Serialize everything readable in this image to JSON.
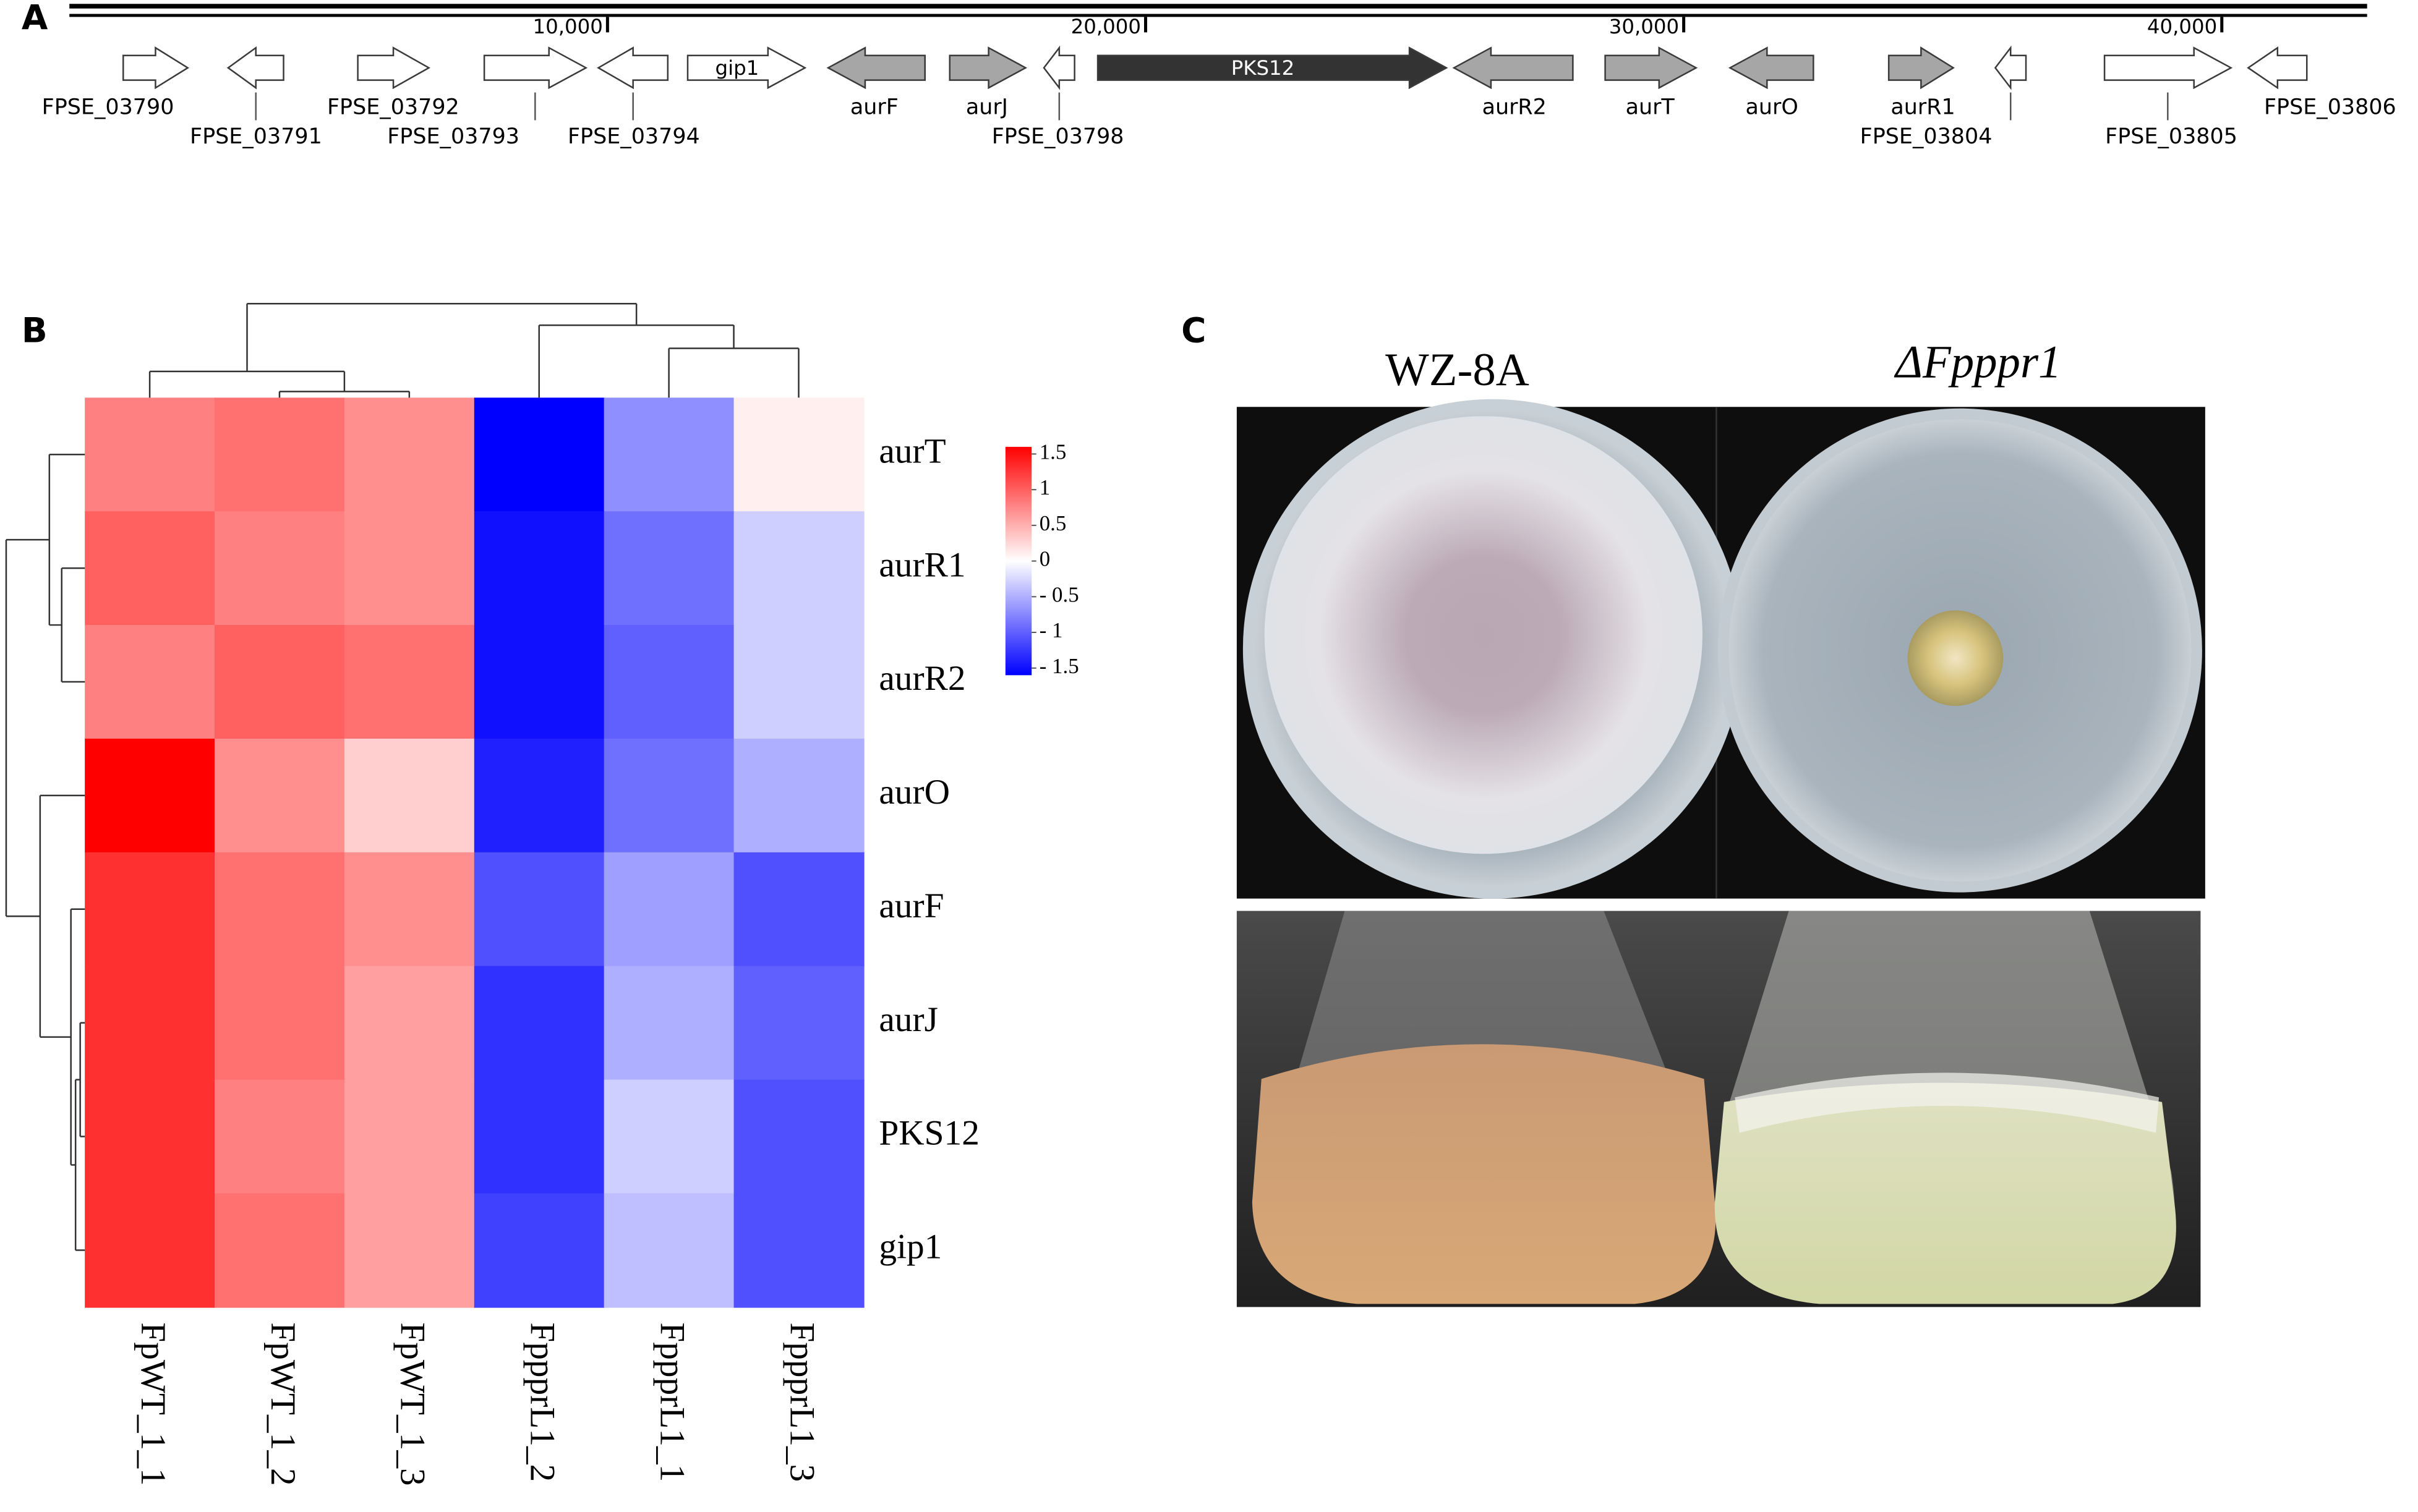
{
  "panel_labels": [
    "A",
    "B",
    "C"
  ],
  "chart_data": [
    {
      "type": "gene_map",
      "xlim": [
        0,
        42700
      ],
      "xticks": [
        {
          "value": 10000,
          "label": "10,000"
        },
        {
          "value": 20000,
          "label": "20,000"
        },
        {
          "value": 30000,
          "label": "30,000"
        },
        {
          "value": 40000,
          "label": "40,000"
        }
      ],
      "genes": [
        {
          "name": "FPSE_03790",
          "start": 1000,
          "end": 2200,
          "strand": "+",
          "color": "#ffffff"
        },
        {
          "name": "FPSE_03791",
          "start": 2950,
          "end": 3980,
          "strand": "-",
          "color": "#ffffff"
        },
        {
          "name": "FPSE_03792",
          "start": 5360,
          "end": 6680,
          "strand": "+",
          "color": "#ffffff"
        },
        {
          "name": "FPSE_03793",
          "start": 7710,
          "end": 9600,
          "strand": "+",
          "color": "#ffffff"
        },
        {
          "name": "FPSE_03794",
          "start": 9830,
          "end": 11120,
          "strand": "-",
          "color": "#ffffff"
        },
        {
          "name": "gip1",
          "start": 11490,
          "end": 13670,
          "strand": "+",
          "color": "#ffffff"
        },
        {
          "name": "aurF",
          "start": 14100,
          "end": 15900,
          "strand": "-",
          "color": "#a6a6a6"
        },
        {
          "name": "aurJ",
          "start": 16360,
          "end": 17770,
          "strand": "+",
          "color": "#a6a6a6"
        },
        {
          "name": "FPSE_03798",
          "start": 18110,
          "end": 18680,
          "strand": "-",
          "color": "#ffffff"
        },
        {
          "name": "PKS12",
          "start": 19110,
          "end": 25590,
          "strand": "+",
          "color": "#333333"
        },
        {
          "name": "aurR2",
          "start": 25730,
          "end": 27940,
          "strand": "-",
          "color": "#a6a6a6"
        },
        {
          "name": "aurT",
          "start": 28540,
          "end": 30230,
          "strand": "+",
          "color": "#a6a6a6"
        },
        {
          "name": "aurO",
          "start": 30860,
          "end": 32410,
          "strand": "-",
          "color": "#a6a6a6"
        },
        {
          "name": "aurR1",
          "start": 33810,
          "end": 35010,
          "strand": "+",
          "color": "#a6a6a6"
        },
        {
          "name": "FPSE_03804",
          "start": 35790,
          "end": 36360,
          "strand": "-",
          "color": "#ffffff"
        },
        {
          "name": "FPSE_03805",
          "start": 37820,
          "end": 40170,
          "strand": "+",
          "color": "#ffffff"
        },
        {
          "name": "FPSE_03806",
          "start": 40490,
          "end": 41580,
          "strand": "-",
          "color": "#ffffff"
        }
      ]
    },
    {
      "type": "heatmap",
      "rows": [
        "aurT",
        "aurR1",
        "aurR2",
        "aurO",
        "aurF",
        "aurJ",
        "PKS12",
        "gip1"
      ],
      "columns": [
        "FpWT_1_1",
        "FpWT_1_2",
        "FpWT_1_3",
        "FppprL1_2",
        "FppprL1_1",
        "FppprL1_3"
      ],
      "values": [
        [
          0.8,
          0.9,
          0.7,
          -1.6,
          -0.7,
          0.1
        ],
        [
          1.0,
          0.8,
          0.7,
          -1.5,
          -0.9,
          -0.3
        ],
        [
          0.8,
          1.0,
          0.9,
          -1.5,
          -1.0,
          -0.3
        ],
        [
          1.6,
          0.7,
          0.3,
          -1.4,
          -0.9,
          -0.5
        ],
        [
          1.3,
          0.9,
          0.7,
          -1.1,
          -0.6,
          -1.1
        ],
        [
          1.3,
          0.9,
          0.6,
          -1.3,
          -0.5,
          -1.0
        ],
        [
          1.3,
          0.8,
          0.6,
          -1.3,
          -0.3,
          -1.1
        ],
        [
          1.3,
          0.9,
          0.6,
          -1.2,
          -0.4,
          -1.1
        ]
      ],
      "clim": [
        -1.6,
        1.6
      ],
      "colors": {
        "low": "#0000ff",
        "mid": "#ffffff",
        "high": "#ff0000"
      },
      "colorbar_ticks": [
        1.5,
        1,
        0.5,
        0,
        {
          "value": -0.5,
          "label": "- 0.5"
        },
        {
          "value": -1,
          "label": "- 1"
        },
        {
          "value": -1.5,
          "label": "- 1.5"
        }
      ]
    }
  ],
  "panel_c": {
    "titles": [
      "WZ-8A",
      "ΔFpppr1"
    ]
  }
}
